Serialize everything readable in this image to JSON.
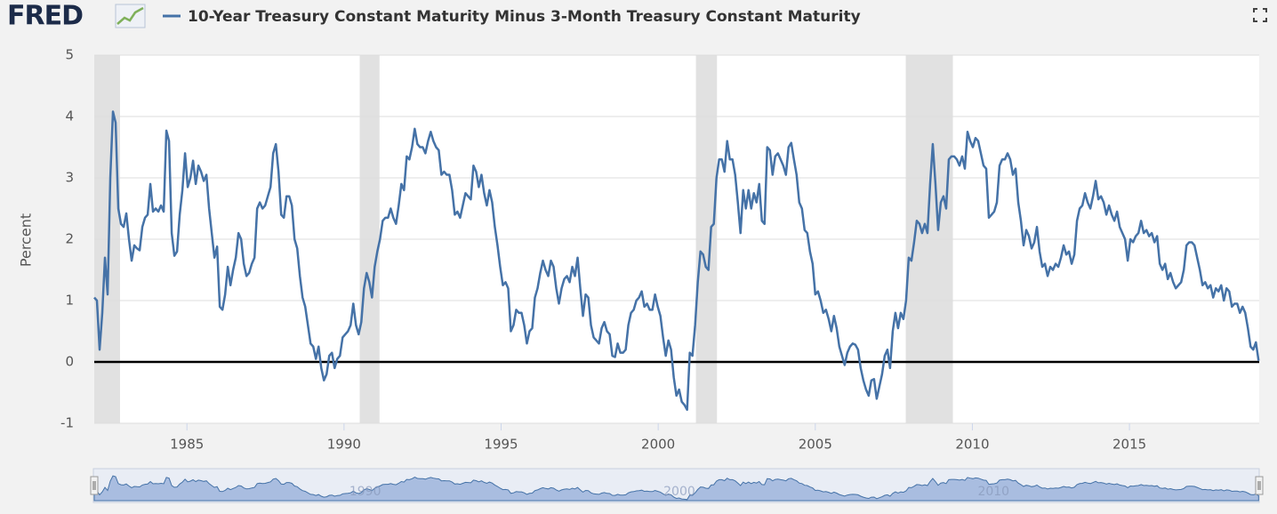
{
  "chart_data": {
    "type": "line",
    "logo": "FRED",
    "y_label": "Percent",
    "xlim": [
      1982.05,
      2019.13
    ],
    "xticks": [
      1985,
      1990,
      1995,
      2000,
      2005,
      2010,
      2015
    ],
    "ylim": [
      -1,
      5
    ],
    "yticks": [
      -1,
      0,
      1,
      2,
      3,
      4,
      5
    ],
    "grid": true,
    "recessions": [
      [
        1982.05,
        1982.87
      ],
      [
        1990.5,
        1991.13
      ],
      [
        2001.2,
        2001.87
      ],
      [
        2007.88,
        2009.38
      ]
    ],
    "navigator_xticks": [
      1990,
      2000,
      2010
    ],
    "x": [
      1982.05,
      1982.135,
      1982.22,
      1982.305,
      1982.39,
      1982.475,
      1982.56,
      1982.645,
      1982.73,
      1982.815,
      1982.9,
      1982.985,
      1983.07,
      1983.155,
      1983.24,
      1983.325,
      1983.41,
      1983.495,
      1983.58,
      1983.665,
      1983.75,
      1983.835,
      1983.92,
      1984.005,
      1984.09,
      1984.175,
      1984.26,
      1984.345,
      1984.43,
      1984.515,
      1984.6,
      1984.685,
      1984.77,
      1984.855,
      1984.94,
      1985.025,
      1985.11,
      1985.195,
      1985.28,
      1985.365,
      1985.45,
      1985.535,
      1985.62,
      1985.705,
      1985.79,
      1985.875,
      1985.96,
      1986.045,
      1986.13,
      1986.215,
      1986.3,
      1986.385,
      1986.47,
      1986.555,
      1986.64,
      1986.725,
      1986.81,
      1986.895,
      1986.98,
      1987.065,
      1987.15,
      1987.235,
      1987.32,
      1987.405,
      1987.49,
      1987.575,
      1987.66,
      1987.745,
      1987.83,
      1987.915,
      1988.0,
      1988.085,
      1988.17,
      1988.255,
      1988.34,
      1988.425,
      1988.51,
      1988.595,
      1988.68,
      1988.765,
      1988.85,
      1988.935,
      1989.02,
      1989.105,
      1989.19,
      1989.275,
      1989.36,
      1989.445,
      1989.53,
      1989.615,
      1989.7,
      1989.785,
      1989.87,
      1989.955,
      1990.04,
      1990.125,
      1990.21,
      1990.295,
      1990.38,
      1990.465,
      1990.55,
      1990.635,
      1990.72,
      1990.805,
      1990.89,
      1990.975,
      1991.06,
      1991.145,
      1991.23,
      1991.315,
      1991.4,
      1991.485,
      1991.57,
      1991.655,
      1991.74,
      1991.825,
      1991.91,
      1991.995,
      1992.08,
      1992.165,
      1992.25,
      1992.335,
      1992.42,
      1992.505,
      1992.59,
      1992.675,
      1992.76,
      1992.845,
      1992.93,
      1993.015,
      1993.1,
      1993.185,
      1993.27,
      1993.355,
      1993.44,
      1993.525,
      1993.61,
      1993.695,
      1993.78,
      1993.865,
      1993.95,
      1994.035,
      1994.12,
      1994.205,
      1994.29,
      1994.375,
      1994.46,
      1994.545,
      1994.63,
      1994.715,
      1994.8,
      1994.885,
      1994.97,
      1995.055,
      1995.14,
      1995.225,
      1995.31,
      1995.395,
      1995.48,
      1995.565,
      1995.65,
      1995.735,
      1995.82,
      1995.905,
      1995.99,
      1996.075,
      1996.16,
      1996.245,
      1996.33,
      1996.415,
      1996.5,
      1996.585,
      1996.67,
      1996.755,
      1996.84,
      1996.925,
      1997.01,
      1997.095,
      1997.18,
      1997.265,
      1997.35,
      1997.435,
      1997.52,
      1997.605,
      1997.69,
      1997.775,
      1997.86,
      1997.945,
      1998.03,
      1998.115,
      1998.2,
      1998.285,
      1998.37,
      1998.455,
      1998.54,
      1998.625,
      1998.71,
      1998.795,
      1998.88,
      1998.965,
      1999.05,
      1999.135,
      1999.22,
      1999.305,
      1999.39,
      1999.475,
      1999.56,
      1999.645,
      1999.73,
      1999.815,
      1999.9,
      1999.985,
      2000.07,
      2000.155,
      2000.24,
      2000.325,
      2000.41,
      2000.495,
      2000.58,
      2000.665,
      2000.75,
      2000.835,
      2000.92,
      2001.005,
      2001.09,
      2001.175,
      2001.26,
      2001.345,
      2001.43,
      2001.515,
      2001.6,
      2001.685,
      2001.77,
      2001.855,
      2001.94,
      2002.025,
      2002.11,
      2002.195,
      2002.28,
      2002.365,
      2002.45,
      2002.535,
      2002.62,
      2002.705,
      2002.79,
      2002.875,
      2002.96,
      2003.045,
      2003.13,
      2003.215,
      2003.3,
      2003.385,
      2003.47,
      2003.555,
      2003.64,
      2003.725,
      2003.81,
      2003.895,
      2003.98,
      2004.065,
      2004.15,
      2004.235,
      2004.32,
      2004.405,
      2004.49,
      2004.575,
      2004.66,
      2004.745,
      2004.83,
      2004.915,
      2005.0,
      2005.085,
      2005.17,
      2005.255,
      2005.34,
      2005.425,
      2005.51,
      2005.595,
      2005.68,
      2005.765,
      2005.85,
      2005.935,
      2006.02,
      2006.105,
      2006.19,
      2006.275,
      2006.36,
      2006.445,
      2006.53,
      2006.615,
      2006.7,
      2006.785,
      2006.87,
      2006.955,
      2007.04,
      2007.125,
      2007.21,
      2007.295,
      2007.38,
      2007.465,
      2007.55,
      2007.635,
      2007.72,
      2007.805,
      2007.89,
      2007.975,
      2008.06,
      2008.145,
      2008.23,
      2008.315,
      2008.4,
      2008.485,
      2008.57,
      2008.655,
      2008.74,
      2008.825,
      2008.91,
      2008.995,
      2009.08,
      2009.165,
      2009.25,
      2009.335,
      2009.42,
      2009.505,
      2009.59,
      2009.675,
      2009.76,
      2009.845,
      2009.93,
      2010.015,
      2010.1,
      2010.185,
      2010.27,
      2010.355,
      2010.44,
      2010.525,
      2010.61,
      2010.695,
      2010.78,
      2010.865,
      2010.95,
      2011.035,
      2011.12,
      2011.205,
      2011.29,
      2011.375,
      2011.46,
      2011.545,
      2011.63,
      2011.715,
      2011.8,
      2011.885,
      2011.97,
      2012.055,
      2012.14,
      2012.225,
      2012.31,
      2012.395,
      2012.48,
      2012.565,
      2012.65,
      2012.735,
      2012.82,
      2012.905,
      2012.99,
      2013.075,
      2013.16,
      2013.245,
      2013.33,
      2013.415,
      2013.5,
      2013.585,
      2013.67,
      2013.755,
      2013.84,
      2013.925,
      2014.01,
      2014.095,
      2014.18,
      2014.265,
      2014.35,
      2014.435,
      2014.52,
      2014.605,
      2014.69,
      2014.775,
      2014.86,
      2014.945,
      2015.03,
      2015.115,
      2015.2,
      2015.285,
      2015.37,
      2015.455,
      2015.54,
      2015.625,
      2015.71,
      2015.795,
      2015.88,
      2015.965,
      2016.05,
      2016.135,
      2016.22,
      2016.305,
      2016.39,
      2016.475,
      2016.56,
      2016.645,
      2016.73,
      2016.815,
      2016.9,
      2016.985,
      2017.07,
      2017.155,
      2017.24,
      2017.325,
      2017.41,
      2017.495,
      2017.58,
      2017.665,
      2017.75,
      2017.835,
      2017.92,
      2018.005,
      2018.09,
      2018.175,
      2018.26,
      2018.345,
      2018.43,
      2018.515,
      2018.6,
      2018.685,
      2018.77,
      2018.855,
      2018.94,
      2019.025,
      2019.11
    ],
    "series": [
      {
        "name": "10-Year Treasury Constant Maturity Minus 3-Month Treasury Constant Maturity",
        "color": "#4572a7",
        "values": [
          1.05,
          1.0,
          0.2,
          0.8,
          1.7,
          1.1,
          3.0,
          4.08,
          3.9,
          2.5,
          2.25,
          2.2,
          2.42,
          2.0,
          1.65,
          1.9,
          1.85,
          1.82,
          2.2,
          2.35,
          2.4,
          2.9,
          2.45,
          2.5,
          2.45,
          2.55,
          2.45,
          3.77,
          3.6,
          2.1,
          1.73,
          1.8,
          2.4,
          2.8,
          3.4,
          2.85,
          3.0,
          3.28,
          2.9,
          3.2,
          3.1,
          2.95,
          3.05,
          2.5,
          2.1,
          1.7,
          1.88,
          0.9,
          0.85,
          1.1,
          1.55,
          1.25,
          1.5,
          1.7,
          2.1,
          2.0,
          1.6,
          1.4,
          1.45,
          1.6,
          1.7,
          2.5,
          2.6,
          2.5,
          2.55,
          2.7,
          2.85,
          3.4,
          3.55,
          3.1,
          2.4,
          2.35,
          2.7,
          2.7,
          2.55,
          2.0,
          1.85,
          1.4,
          1.05,
          0.9,
          0.6,
          0.3,
          0.25,
          0.05,
          0.25,
          -0.1,
          -0.3,
          -0.2,
          0.1,
          0.15,
          -0.1,
          0.05,
          0.1,
          0.4,
          0.45,
          0.5,
          0.6,
          0.95,
          0.6,
          0.45,
          0.65,
          1.2,
          1.45,
          1.3,
          1.05,
          1.55,
          1.8,
          2.0,
          2.3,
          2.35,
          2.35,
          2.5,
          2.35,
          2.25,
          2.55,
          2.9,
          2.8,
          3.35,
          3.3,
          3.5,
          3.8,
          3.55,
          3.5,
          3.5,
          3.4,
          3.6,
          3.75,
          3.6,
          3.5,
          3.45,
          3.05,
          3.1,
          3.05,
          3.05,
          2.8,
          2.4,
          2.45,
          2.35,
          2.55,
          2.75,
          2.7,
          2.65,
          3.2,
          3.1,
          2.85,
          3.05,
          2.75,
          2.55,
          2.8,
          2.6,
          2.2,
          1.9,
          1.55,
          1.25,
          1.3,
          1.2,
          0.5,
          0.6,
          0.85,
          0.8,
          0.8,
          0.6,
          0.3,
          0.5,
          0.55,
          1.05,
          1.2,
          1.45,
          1.65,
          1.5,
          1.4,
          1.65,
          1.55,
          1.2,
          0.95,
          1.2,
          1.35,
          1.4,
          1.3,
          1.55,
          1.4,
          1.7,
          1.2,
          0.75,
          1.1,
          1.05,
          0.6,
          0.4,
          0.35,
          0.3,
          0.55,
          0.65,
          0.5,
          0.45,
          0.1,
          0.08,
          0.3,
          0.15,
          0.15,
          0.2,
          0.6,
          0.8,
          0.85,
          1.0,
          1.05,
          1.15,
          0.9,
          0.95,
          0.85,
          0.85,
          1.1,
          0.9,
          0.75,
          0.4,
          0.1,
          0.35,
          0.2,
          -0.25,
          -0.55,
          -0.45,
          -0.65,
          -0.7,
          -0.78,
          0.15,
          0.1,
          0.6,
          1.3,
          1.8,
          1.75,
          1.55,
          1.5,
          2.2,
          2.25,
          3.0,
          3.3,
          3.3,
          3.1,
          3.6,
          3.3,
          3.3,
          3.05,
          2.6,
          2.1,
          2.8,
          2.5,
          2.8,
          2.5,
          2.75,
          2.6,
          2.9,
          2.3,
          2.25,
          3.5,
          3.45,
          3.05,
          3.35,
          3.4,
          3.3,
          3.2,
          3.05,
          3.5,
          3.57,
          3.3,
          3.05,
          2.6,
          2.5,
          2.15,
          2.1,
          1.8,
          1.6,
          1.1,
          1.15,
          1.0,
          0.8,
          0.85,
          0.7,
          0.5,
          0.75,
          0.55,
          0.25,
          0.1,
          -0.05,
          0.15,
          0.25,
          0.3,
          0.28,
          0.2,
          -0.1,
          -0.3,
          -0.45,
          -0.55,
          -0.3,
          -0.28,
          -0.6,
          -0.4,
          -0.2,
          0.1,
          0.2,
          -0.1,
          0.5,
          0.8,
          0.55,
          0.8,
          0.7,
          1.0,
          1.7,
          1.65,
          1.95,
          2.3,
          2.25,
          2.1,
          2.25,
          2.1,
          2.9,
          3.55,
          2.9,
          2.15,
          2.6,
          2.7,
          2.5,
          3.3,
          3.35,
          3.35,
          3.3,
          3.2,
          3.35,
          3.15,
          3.75,
          3.6,
          3.5,
          3.65,
          3.6,
          3.4,
          3.2,
          3.15,
          2.35,
          2.4,
          2.45,
          2.6,
          3.2,
          3.3,
          3.3,
          3.4,
          3.3,
          3.05,
          3.15,
          2.6,
          2.3,
          1.9,
          2.15,
          2.05,
          1.85,
          1.95,
          2.2,
          1.8,
          1.55,
          1.6,
          1.4,
          1.55,
          1.5,
          1.6,
          1.55,
          1.7,
          1.9,
          1.75,
          1.8,
          1.6,
          1.75,
          2.3,
          2.5,
          2.55,
          2.75,
          2.6,
          2.5,
          2.7,
          2.95,
          2.65,
          2.7,
          2.6,
          2.4,
          2.55,
          2.4,
          2.3,
          2.45,
          2.2,
          2.1,
          2.0,
          1.65,
          2.0,
          1.95,
          2.05,
          2.1,
          2.3,
          2.1,
          2.15,
          2.05,
          2.1,
          1.95,
          2.05,
          1.6,
          1.5,
          1.6,
          1.35,
          1.45,
          1.3,
          1.2,
          1.25,
          1.3,
          1.5,
          1.9,
          1.95,
          1.95,
          1.9,
          1.7,
          1.5,
          1.25,
          1.3,
          1.2,
          1.25,
          1.05,
          1.2,
          1.15,
          1.25,
          1.0,
          1.2,
          1.15,
          0.9,
          0.95,
          0.95,
          0.8,
          0.9,
          0.8,
          0.55,
          0.25,
          0.2,
          0.32,
          0.02
        ]
      }
    ]
  }
}
